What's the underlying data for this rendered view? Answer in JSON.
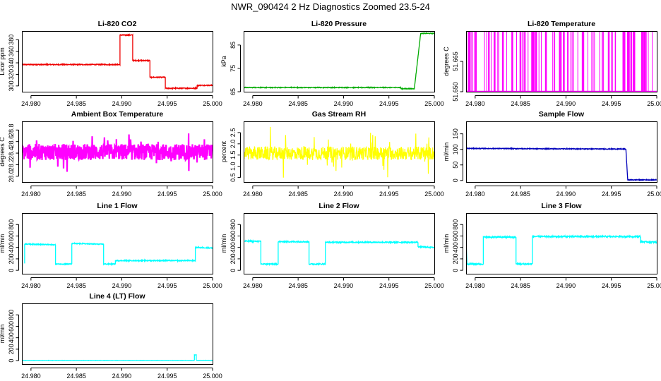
{
  "figure": {
    "title": "NWR_090424  2 Hz Diagnostics Zoomed 23.5-24",
    "x_tick_labels": [
      "24.980",
      "24.985",
      "24.990",
      "24.995",
      "25.000"
    ]
  },
  "chart_data": [
    {
      "id": "co2",
      "type": "line",
      "title": "Li-820 CO2",
      "ylabel": "Licor ppm",
      "color": "#ee0000",
      "xlim": [
        24.979,
        25.0
      ],
      "ylim": [
        290,
        395
      ],
      "yticks": [
        300,
        320,
        340,
        360,
        380
      ],
      "ytick_labels": [
        "300",
        "320",
        "340",
        "360",
        "380"
      ],
      "noise": 0.8,
      "series": [
        {
          "name": "CO2",
          "x": [
            24.979,
            24.9898,
            24.9898,
            24.9912,
            24.9912,
            24.9931,
            24.9931,
            24.9948,
            24.9948,
            24.9983,
            24.9983,
            25.0
          ],
          "y": [
            337,
            337,
            388,
            388,
            344,
            344,
            315,
            315,
            296,
            296,
            301,
            301
          ]
        }
      ]
    },
    {
      "id": "pressure",
      "type": "line",
      "title": "Li-820 Pressure",
      "ylabel": "kPa",
      "color": "#00aa00",
      "xlim": [
        24.979,
        25.0
      ],
      "ylim": [
        65,
        91
      ],
      "yticks": [
        65,
        75,
        85
      ],
      "ytick_labels": [
        "65",
        "75",
        "85"
      ],
      "noise": 0.15,
      "series": [
        {
          "name": "Pressure",
          "x": [
            24.979,
            24.9963,
            24.9963,
            24.9978,
            24.9985,
            25.0
          ],
          "y": [
            66.8,
            66.8,
            66.3,
            66.3,
            90,
            90
          ]
        }
      ]
    },
    {
      "id": "temperature",
      "type": "switching",
      "title": "Li-820 Temperature",
      "ylabel": "degrees C",
      "color": "#ff00ff",
      "xlim": [
        24.979,
        25.0
      ],
      "ylim": [
        51.65,
        51.68
      ],
      "yticks": [
        51.65,
        51.665
      ],
      "ytick_labels": [
        "51.650",
        "51.665"
      ],
      "low": 51.65,
      "high": 51.68,
      "count": 90
    },
    {
      "id": "box-temp",
      "type": "noise",
      "title": "Ambient Box Temperature",
      "ylabel": "degrees C",
      "color": "#ff00ff",
      "xlim": [
        24.979,
        25.0
      ],
      "ylim": [
        27.9,
        28.95
      ],
      "yticks": [
        28.0,
        28.2,
        28.4,
        28.6,
        28.8
      ],
      "ytick_labels": [
        "28.0",
        "28.2",
        "28.4",
        "28.6",
        "28.8"
      ],
      "mean": 28.42,
      "amplitude": 0.14,
      "spikes": 0.15,
      "width": 2.2
    },
    {
      "id": "rh",
      "type": "noise",
      "title": "Gas Stream RH",
      "ylabel": "percent",
      "color": "#ffff00",
      "xlim": [
        24.979,
        25.0
      ],
      "ylim": [
        0.3,
        3.0
      ],
      "yticks": [
        0.5,
        1.0,
        1.5,
        2.0,
        2.5
      ],
      "ytick_labels": [
        "0.5",
        "1.0",
        "1.5",
        "2.0",
        "2.5"
      ],
      "mean": 1.58,
      "amplitude": 0.3,
      "spikes": 0.6,
      "width": 1.2
    },
    {
      "id": "sample-flow",
      "type": "line",
      "title": "Sample Flow",
      "ylabel": "ml/min",
      "color": "#0000bb",
      "xlim": [
        24.979,
        25.0
      ],
      "ylim": [
        -5,
        190
      ],
      "yticks": [
        0,
        50,
        100,
        150
      ],
      "ytick_labels": [
        "0",
        "50",
        "100",
        "150"
      ],
      "noise": 1.2,
      "series": [
        {
          "name": "Sample Flow",
          "x": [
            24.979,
            24.9966,
            24.9966,
            24.9968,
            25.0
          ],
          "y": [
            103,
            101,
            101,
            2,
            2
          ]
        }
      ]
    },
    {
      "id": "line1",
      "type": "line",
      "title": "Line 1 Flow",
      "ylabel": "ml/min",
      "color": "#00ffff",
      "xlim": [
        24.979,
        25.0
      ],
      "ylim": [
        -60,
        1000
      ],
      "yticks": [
        0,
        200,
        400,
        600,
        800
      ],
      "ytick_labels": [
        "0",
        "200",
        "400",
        "600",
        "800"
      ],
      "noise": 8,
      "series": [
        {
          "name": "Line 1",
          "x": [
            24.9793,
            24.9793,
            24.9827,
            24.9827,
            24.9845,
            24.9845,
            24.988,
            24.988,
            24.9893,
            24.9893,
            24.9981,
            24.9981,
            25.0
          ],
          "y": [
            120,
            460,
            445,
            110,
            110,
            470,
            455,
            110,
            110,
            170,
            170,
            400,
            390
          ]
        }
      ]
    },
    {
      "id": "line2",
      "type": "line",
      "title": "Line 2 Flow",
      "ylabel": "ml/min",
      "color": "#00ffff",
      "xlim": [
        24.979,
        25.0
      ],
      "ylim": [
        -60,
        1000
      ],
      "yticks": [
        0,
        200,
        400,
        600,
        800
      ],
      "ytick_labels": [
        "0",
        "200",
        "400",
        "600",
        "800"
      ],
      "noise": 10,
      "series": [
        {
          "name": "Line 2",
          "x": [
            24.979,
            24.9809,
            24.9809,
            24.9828,
            24.9828,
            24.9862,
            24.9862,
            24.988,
            24.988,
            24.9982,
            24.9982,
            25.0
          ],
          "y": [
            510,
            505,
            110,
            110,
            500,
            500,
            110,
            110,
            490,
            490,
            410,
            400
          ]
        }
      ]
    },
    {
      "id": "line3",
      "type": "line",
      "title": "Line 3 Flow",
      "ylabel": "ml/min",
      "color": "#00ffff",
      "xlim": [
        24.979,
        25.0
      ],
      "ylim": [
        -60,
        1000
      ],
      "yticks": [
        0,
        200,
        400,
        600,
        800
      ],
      "ytick_labels": [
        "0",
        "200",
        "400",
        "600",
        "800"
      ],
      "noise": 12,
      "series": [
        {
          "name": "Line 3",
          "x": [
            24.979,
            24.979,
            24.9791,
            24.9809,
            24.9809,
            24.9845,
            24.9845,
            24.9863,
            24.9863,
            24.9982,
            24.9982,
            25.0
          ],
          "y": [
            540,
            540,
            110,
            110,
            580,
            580,
            110,
            110,
            590,
            590,
            500,
            490
          ]
        }
      ]
    },
    {
      "id": "line4",
      "type": "line",
      "title": "Line 4 (LT) Flow",
      "ylabel": "ml/min",
      "color": "#00ffff",
      "xlim": [
        24.979,
        25.0
      ],
      "ylim": [
        -60,
        1000
      ],
      "yticks": [
        0,
        200,
        400,
        600,
        800
      ],
      "ytick_labels": [
        "0",
        "200",
        "400",
        "600",
        "800"
      ],
      "noise": 2,
      "series": [
        {
          "name": "Line 4",
          "x": [
            24.979,
            24.998,
            24.998,
            24.9982,
            24.9982,
            25.0
          ],
          "y": [
            3,
            3,
            100,
            100,
            5,
            5
          ]
        }
      ]
    }
  ]
}
